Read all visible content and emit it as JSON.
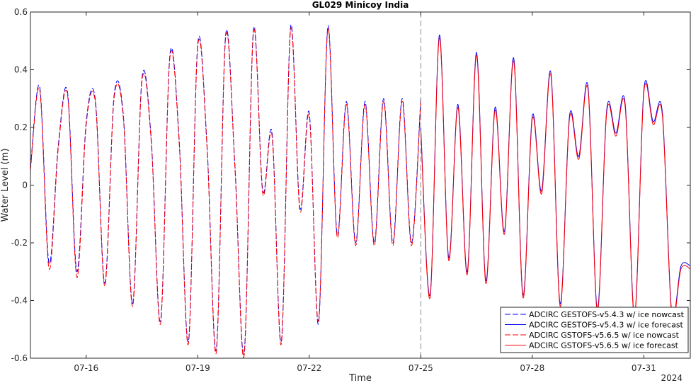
{
  "chart_data": {
    "type": "line",
    "title": "GL029 Minicoy India",
    "xlabel": "Time",
    "ylabel": "Water Level (m)",
    "year_label": "2024",
    "xlim": [
      "2024-07-14T12:00",
      "2024-08-01T06:00"
    ],
    "ylim": [
      -0.6,
      0.6
    ],
    "yticks": [
      -0.6,
      -0.4,
      -0.2,
      0,
      0.2,
      0.4,
      0.6
    ],
    "ytick_labels": [
      "-0.6",
      "-0.4",
      "-0.2",
      "0",
      "0.2",
      "0.4",
      "0.6"
    ],
    "xticks": [
      "2024-07-16",
      "2024-07-19",
      "2024-07-22",
      "2024-07-25",
      "2024-07-28",
      "2024-07-31"
    ],
    "xtick_labels": [
      "07-16",
      "07-19",
      "07-22",
      "07-25",
      "07-28",
      "07-31"
    ],
    "grid": false,
    "legend_position": "bottom-right",
    "divider_x": "2024-07-25",
    "series": [
      {
        "name": "ADCIRC GESTOFS-v5.4.3 w/ ice nowcast",
        "color": "#0000ff",
        "style": "dashed",
        "x": [
          "2024-07-14T12:00",
          "2024-07-14T18:00",
          "2024-07-15T00:00",
          "2024-07-15T06:00",
          "2024-07-15T12:00",
          "2024-07-15T18:00",
          "2024-07-16T00:00",
          "2024-07-16T06:00",
          "2024-07-16T12:00",
          "2024-07-16T18:00",
          "2024-07-17T00:00",
          "2024-07-17T06:00",
          "2024-07-17T12:00",
          "2024-07-17T18:00",
          "2024-07-18T00:00",
          "2024-07-18T06:00",
          "2024-07-18T12:00",
          "2024-07-18T18:00",
          "2024-07-19T00:00",
          "2024-07-19T06:00",
          "2024-07-19T12:00",
          "2024-07-19T18:00",
          "2024-07-20T00:00",
          "2024-07-20T06:00",
          "2024-07-20T12:00",
          "2024-07-20T18:00",
          "2024-07-21T00:00",
          "2024-07-21T06:00",
          "2024-07-21T12:00",
          "2024-07-21T18:00",
          "2024-07-22T00:00",
          "2024-07-22T06:00",
          "2024-07-22T12:00",
          "2024-07-22T18:00",
          "2024-07-23T00:00",
          "2024-07-23T06:00",
          "2024-07-23T12:00",
          "2024-07-23T18:00",
          "2024-07-24T00:00",
          "2024-07-24T06:00",
          "2024-07-24T12:00",
          "2024-07-24T18:00",
          "2024-07-25T00:00"
        ],
        "y": [
          0.06,
          0.34,
          -0.27,
          0.14,
          0.32,
          -0.3,
          0.22,
          0.29,
          -0.34,
          0.31,
          0.24,
          -0.41,
          0.37,
          0.16,
          -0.47,
          0.45,
          0.16,
          -0.54,
          0.49,
          0.14,
          -0.57,
          0.52,
          0.07,
          -0.58,
          0.54,
          -0.02,
          0.18,
          -0.54,
          0.55,
          -0.08,
          0.25,
          -0.48,
          0.55,
          -0.17,
          0.29,
          -0.2,
          0.29,
          -0.2,
          0.3,
          -0.2,
          0.3,
          -0.2,
          0.3
        ]
      },
      {
        "name": "ADCIRC GESTOFS-v5.4.3 w/ ice forecast",
        "color": "#0000ff",
        "style": "solid",
        "x": [
          "2024-07-25T00:00",
          "2024-07-25T06:00",
          "2024-07-25T12:00",
          "2024-07-25T18:00",
          "2024-07-26T00:00",
          "2024-07-26T06:00",
          "2024-07-26T12:00",
          "2024-07-26T18:00",
          "2024-07-27T00:00",
          "2024-07-27T06:00",
          "2024-07-27T12:00",
          "2024-07-27T18:00",
          "2024-07-28T00:00",
          "2024-07-28T06:00",
          "2024-07-28T12:00",
          "2024-07-28T18:00",
          "2024-07-29T00:00",
          "2024-07-29T06:00",
          "2024-07-29T12:00",
          "2024-07-29T18:00",
          "2024-07-30T00:00",
          "2024-07-30T06:00",
          "2024-07-30T12:00",
          "2024-07-30T18:00",
          "2024-07-31T00:00",
          "2024-07-31T06:00",
          "2024-07-31T12:00",
          "2024-07-31T18:00",
          "2024-08-01T00:00",
          "2024-08-01T06:00"
        ],
        "y": [
          0.2,
          -0.38,
          0.52,
          -0.25,
          0.28,
          -0.3,
          0.46,
          -0.33,
          0.27,
          -0.16,
          0.44,
          -0.38,
          0.24,
          -0.02,
          0.39,
          -0.41,
          0.24,
          0.1,
          0.34,
          -0.43,
          0.26,
          0.18,
          0.28,
          -0.45,
          0.33,
          0.22,
          0.25,
          -0.44,
          -0.28,
          -0.28
        ]
      },
      {
        "name": "ADCIRC GSTOFS-v5.6.5 w/ ice nowcast",
        "color": "#ff0000",
        "style": "dashed",
        "x": [
          "2024-07-14T12:00",
          "2024-07-14T18:00",
          "2024-07-15T00:00",
          "2024-07-15T06:00",
          "2024-07-15T12:00",
          "2024-07-15T18:00",
          "2024-07-16T00:00",
          "2024-07-16T06:00",
          "2024-07-16T12:00",
          "2024-07-16T18:00",
          "2024-07-17T00:00",
          "2024-07-17T06:00",
          "2024-07-17T12:00",
          "2024-07-17T18:00",
          "2024-07-18T00:00",
          "2024-07-18T06:00",
          "2024-07-18T12:00",
          "2024-07-18T18:00",
          "2024-07-19T00:00",
          "2024-07-19T06:00",
          "2024-07-19T12:00",
          "2024-07-19T18:00",
          "2024-07-20T00:00",
          "2024-07-20T06:00",
          "2024-07-20T12:00",
          "2024-07-20T18:00",
          "2024-07-21T00:00",
          "2024-07-21T06:00",
          "2024-07-21T12:00",
          "2024-07-21T18:00",
          "2024-07-22T00:00",
          "2024-07-22T06:00",
          "2024-07-22T12:00",
          "2024-07-22T18:00",
          "2024-07-23T00:00",
          "2024-07-23T06:00",
          "2024-07-23T12:00",
          "2024-07-23T18:00",
          "2024-07-24T00:00",
          "2024-07-24T06:00",
          "2024-07-24T12:00",
          "2024-07-24T18:00",
          "2024-07-25T00:00"
        ],
        "y": [
          0.05,
          0.33,
          -0.29,
          0.13,
          0.31,
          -0.32,
          0.21,
          0.28,
          -0.35,
          0.3,
          0.23,
          -0.42,
          0.36,
          0.15,
          -0.48,
          0.44,
          0.15,
          -0.55,
          0.48,
          0.13,
          -0.58,
          0.51,
          0.06,
          -0.59,
          0.53,
          -0.03,
          0.17,
          -0.55,
          0.54,
          -0.09,
          0.24,
          -0.47,
          0.54,
          -0.18,
          0.28,
          -0.21,
          0.28,
          -0.21,
          0.29,
          -0.21,
          0.29,
          -0.21,
          0.29
        ]
      },
      {
        "name": "ADCIRC GSTOFS-v5.6.5 w/ ice forecast",
        "color": "#ff0000",
        "style": "solid",
        "x": [
          "2024-07-25T00:00",
          "2024-07-25T06:00",
          "2024-07-25T12:00",
          "2024-07-25T18:00",
          "2024-07-26T00:00",
          "2024-07-26T06:00",
          "2024-07-26T12:00",
          "2024-07-26T18:00",
          "2024-07-27T00:00",
          "2024-07-27T06:00",
          "2024-07-27T12:00",
          "2024-07-27T18:00",
          "2024-07-28T00:00",
          "2024-07-28T06:00",
          "2024-07-28T12:00",
          "2024-07-28T18:00",
          "2024-07-29T00:00",
          "2024-07-29T06:00",
          "2024-07-29T12:00",
          "2024-07-29T18:00",
          "2024-07-30T00:00",
          "2024-07-30T06:00",
          "2024-07-30T12:00",
          "2024-07-30T18:00",
          "2024-07-31T00:00",
          "2024-07-31T06:00",
          "2024-07-31T12:00",
          "2024-07-31T18:00",
          "2024-08-01T00:00",
          "2024-08-01T06:00"
        ],
        "y": [
          0.19,
          -0.39,
          0.51,
          -0.26,
          0.27,
          -0.31,
          0.45,
          -0.34,
          0.26,
          -0.17,
          0.43,
          -0.39,
          0.23,
          -0.03,
          0.38,
          -0.42,
          0.23,
          0.09,
          0.33,
          -0.44,
          0.25,
          0.17,
          0.27,
          -0.46,
          0.32,
          0.21,
          0.24,
          -0.45,
          -0.29,
          -0.29
        ]
      }
    ]
  }
}
